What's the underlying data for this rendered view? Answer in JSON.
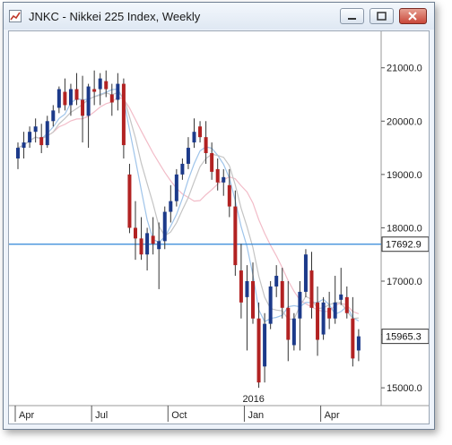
{
  "window": {
    "title": "JNKC - Nikkei 225 Index, Weekly",
    "controls": [
      "minimize",
      "maximize",
      "close"
    ]
  },
  "chart_data": {
    "type": "candlestick",
    "title": "JNKC - Nikkei 225 Index, Weekly",
    "ylim": [
      14700,
      21650
    ],
    "y_ticks": [
      {
        "value": 15000,
        "label": "15000.0"
      },
      {
        "value": 16000,
        "label": "16000.0"
      },
      {
        "value": 17000,
        "label": "17000.0"
      },
      {
        "value": 18000,
        "label": "18000.0"
      },
      {
        "value": 19000,
        "label": "19000.0"
      },
      {
        "value": 20000,
        "label": "20000.0"
      },
      {
        "value": 21000,
        "label": "21000.0"
      }
    ],
    "x_ticks": [
      {
        "index": 0,
        "label": "Apr"
      },
      {
        "index": 13,
        "label": "Jul"
      },
      {
        "index": 26,
        "label": "Oct"
      },
      {
        "index": 39,
        "label": "Jan"
      },
      {
        "index": 52,
        "label": "Apr"
      }
    ],
    "year_marker": {
      "index": 39,
      "label": "2016"
    },
    "horizontal_line": {
      "value": 17692.9,
      "label": "17692.9",
      "color": "#2f86d8"
    },
    "last_price": {
      "value": 15965.3,
      "label": "15965.3"
    },
    "colors": {
      "up": "#1c3a8a",
      "down": "#b22222",
      "wick": "#333333",
      "ma_fast": "#9fc4ea",
      "ma_slow": "#f2bcc8",
      "ma_grey": "#c4c4c4"
    },
    "candles": [
      [
        19300,
        19600,
        19100,
        19500
      ],
      [
        19500,
        19800,
        19300,
        19600
      ],
      [
        19600,
        19900,
        19500,
        19800
      ],
      [
        19800,
        20050,
        19600,
        19900
      ],
      [
        19700,
        19950,
        19400,
        19550
      ],
      [
        19550,
        20100,
        19500,
        20000
      ],
      [
        20000,
        20300,
        19900,
        20200
      ],
      [
        20250,
        20650,
        20150,
        20600
      ],
      [
        20550,
        20800,
        20200,
        20300
      ],
      [
        20300,
        20700,
        20100,
        20600
      ],
      [
        20600,
        20900,
        20300,
        20400
      ],
      [
        20400,
        20850,
        19600,
        20100
      ],
      [
        20100,
        20700,
        19500,
        20650
      ],
      [
        20600,
        20950,
        20300,
        20550
      ],
      [
        20600,
        20900,
        20300,
        20800
      ],
      [
        20750,
        20950,
        20450,
        20600
      ],
      [
        20500,
        20700,
        20100,
        20350
      ],
      [
        20400,
        20900,
        20200,
        20700
      ],
      [
        20700,
        20800,
        19300,
        19550
      ],
      [
        19000,
        19200,
        17900,
        18000
      ],
      [
        18000,
        18500,
        17400,
        17800
      ],
      [
        17800,
        18200,
        17400,
        17500
      ],
      [
        17500,
        18000,
        17200,
        17900
      ],
      [
        17850,
        18200,
        17500,
        17700
      ],
      [
        17600,
        18100,
        16850,
        17750
      ],
      [
        17750,
        18400,
        17600,
        18300
      ],
      [
        18300,
        18800,
        18100,
        18500
      ],
      [
        18500,
        19100,
        18400,
        19000
      ],
      [
        19000,
        19300,
        18900,
        19200
      ],
      [
        19200,
        19700,
        19100,
        19500
      ],
      [
        19600,
        20050,
        19500,
        19800
      ],
      [
        19900,
        20000,
        19600,
        19700
      ],
      [
        19700,
        20000,
        19200,
        19400
      ],
      [
        19400,
        19600,
        18900,
        19050
      ],
      [
        19100,
        19300,
        18700,
        18850
      ],
      [
        18850,
        19100,
        18600,
        18950
      ],
      [
        18800,
        19100,
        18200,
        18400
      ],
      [
        18400,
        18700,
        17100,
        17300
      ],
      [
        17200,
        17700,
        16300,
        16600
      ],
      [
        16700,
        17300,
        15700,
        17000
      ],
      [
        17000,
        17350,
        16200,
        16300
      ],
      [
        16300,
        16600,
        15000,
        15100
      ],
      [
        15400,
        16400,
        15100,
        16200
      ],
      [
        16200,
        17000,
        16100,
        16900
      ],
      [
        16900,
        17300,
        16700,
        17100
      ],
      [
        17000,
        17250,
        16300,
        16500
      ],
      [
        16500,
        17000,
        15500,
        15900
      ],
      [
        15800,
        16400,
        15700,
        16300
      ],
      [
        16300,
        17000,
        15700,
        16800
      ],
      [
        16800,
        17600,
        16700,
        17500
      ],
      [
        17200,
        17550,
        16300,
        16500
      ],
      [
        16600,
        16900,
        15600,
        15900
      ],
      [
        16000,
        16700,
        15900,
        16600
      ],
      [
        16500,
        16800,
        16100,
        16300
      ],
      [
        16300,
        17100,
        16200,
        16600
      ],
      [
        16650,
        17250,
        16550,
        16750
      ],
      [
        16700,
        16900,
        16300,
        16400
      ],
      [
        16300,
        16700,
        15400,
        15550
      ],
      [
        15700,
        16100,
        15500,
        15965.3
      ]
    ]
  }
}
